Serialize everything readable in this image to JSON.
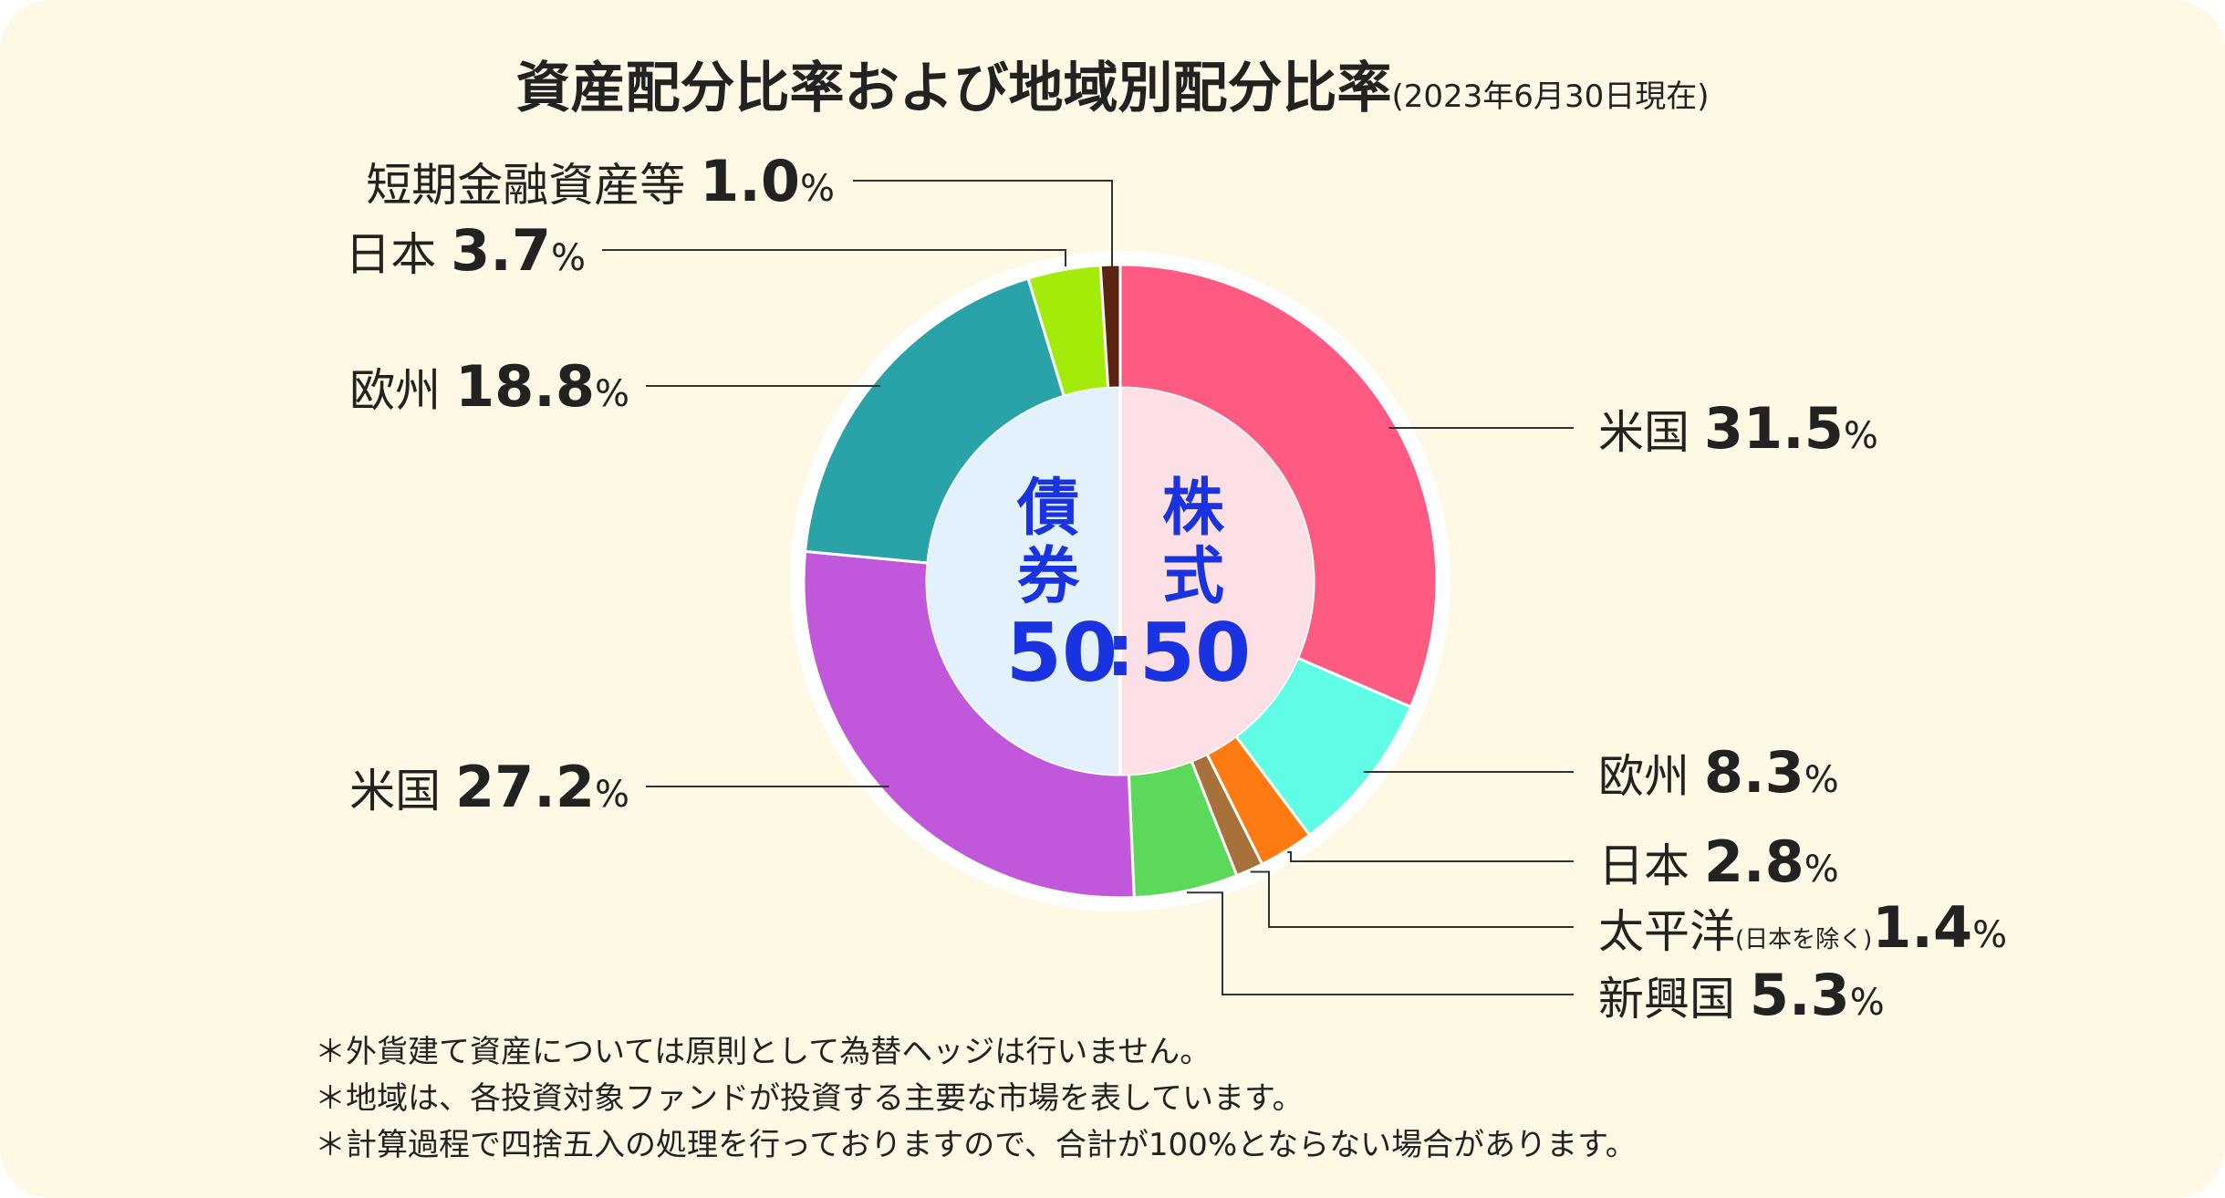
{
  "title": {
    "main": "資産配分比率および地域別配分比率",
    "sub": "(2023年6月30日現在)"
  },
  "center": {
    "left_label": [
      "債",
      "券"
    ],
    "right_label": [
      "株",
      "式"
    ],
    "ratio_left": "50",
    "ratio_sep": ":",
    "ratio_right": "50"
  },
  "chart_data": {
    "type": "pie",
    "title": "資産配分比率および地域別配分比率",
    "unit": "%",
    "inner": {
      "categories": [
        "株式",
        "債券"
      ],
      "values": [
        50,
        50
      ],
      "colors": [
        "#fddfe6",
        "#e2f1fc"
      ]
    },
    "outer": {
      "categories": [
        "米国",
        "欧州",
        "日本",
        "太平洋",
        "新興国",
        "米国",
        "欧州",
        "日本",
        "短期金融資産等"
      ],
      "values": [
        31.5,
        8.3,
        2.8,
        1.4,
        5.3,
        27.2,
        18.8,
        3.7,
        1.0
      ],
      "colors": [
        "#ff5a82",
        "#5ffce6",
        "#ff7a10",
        "#a8703a",
        "#5cd85a",
        "#c158dc",
        "#2aa3a8",
        "#a3ec0a",
        "#5a2410"
      ],
      "value_labels": [
        "31.5",
        "8.3",
        "2.8",
        "1.4",
        "5.3",
        "27.2",
        "18.8",
        "3.7",
        "1.0"
      ],
      "notes": [
        "",
        "",
        "",
        "(日本を除く)",
        "",
        "",
        "",
        "",
        ""
      ]
    },
    "percent_sign": "%"
  },
  "footnotes": [
    "＊外貨建て資産については原則として為替ヘッジは行いません。",
    "＊地域は、各投資対象ファンドが投資する主要な市場を表しています。",
    "＊計算過程で四捨五入の処理を行っておりますので、合計が100%とならない場合があります。"
  ]
}
